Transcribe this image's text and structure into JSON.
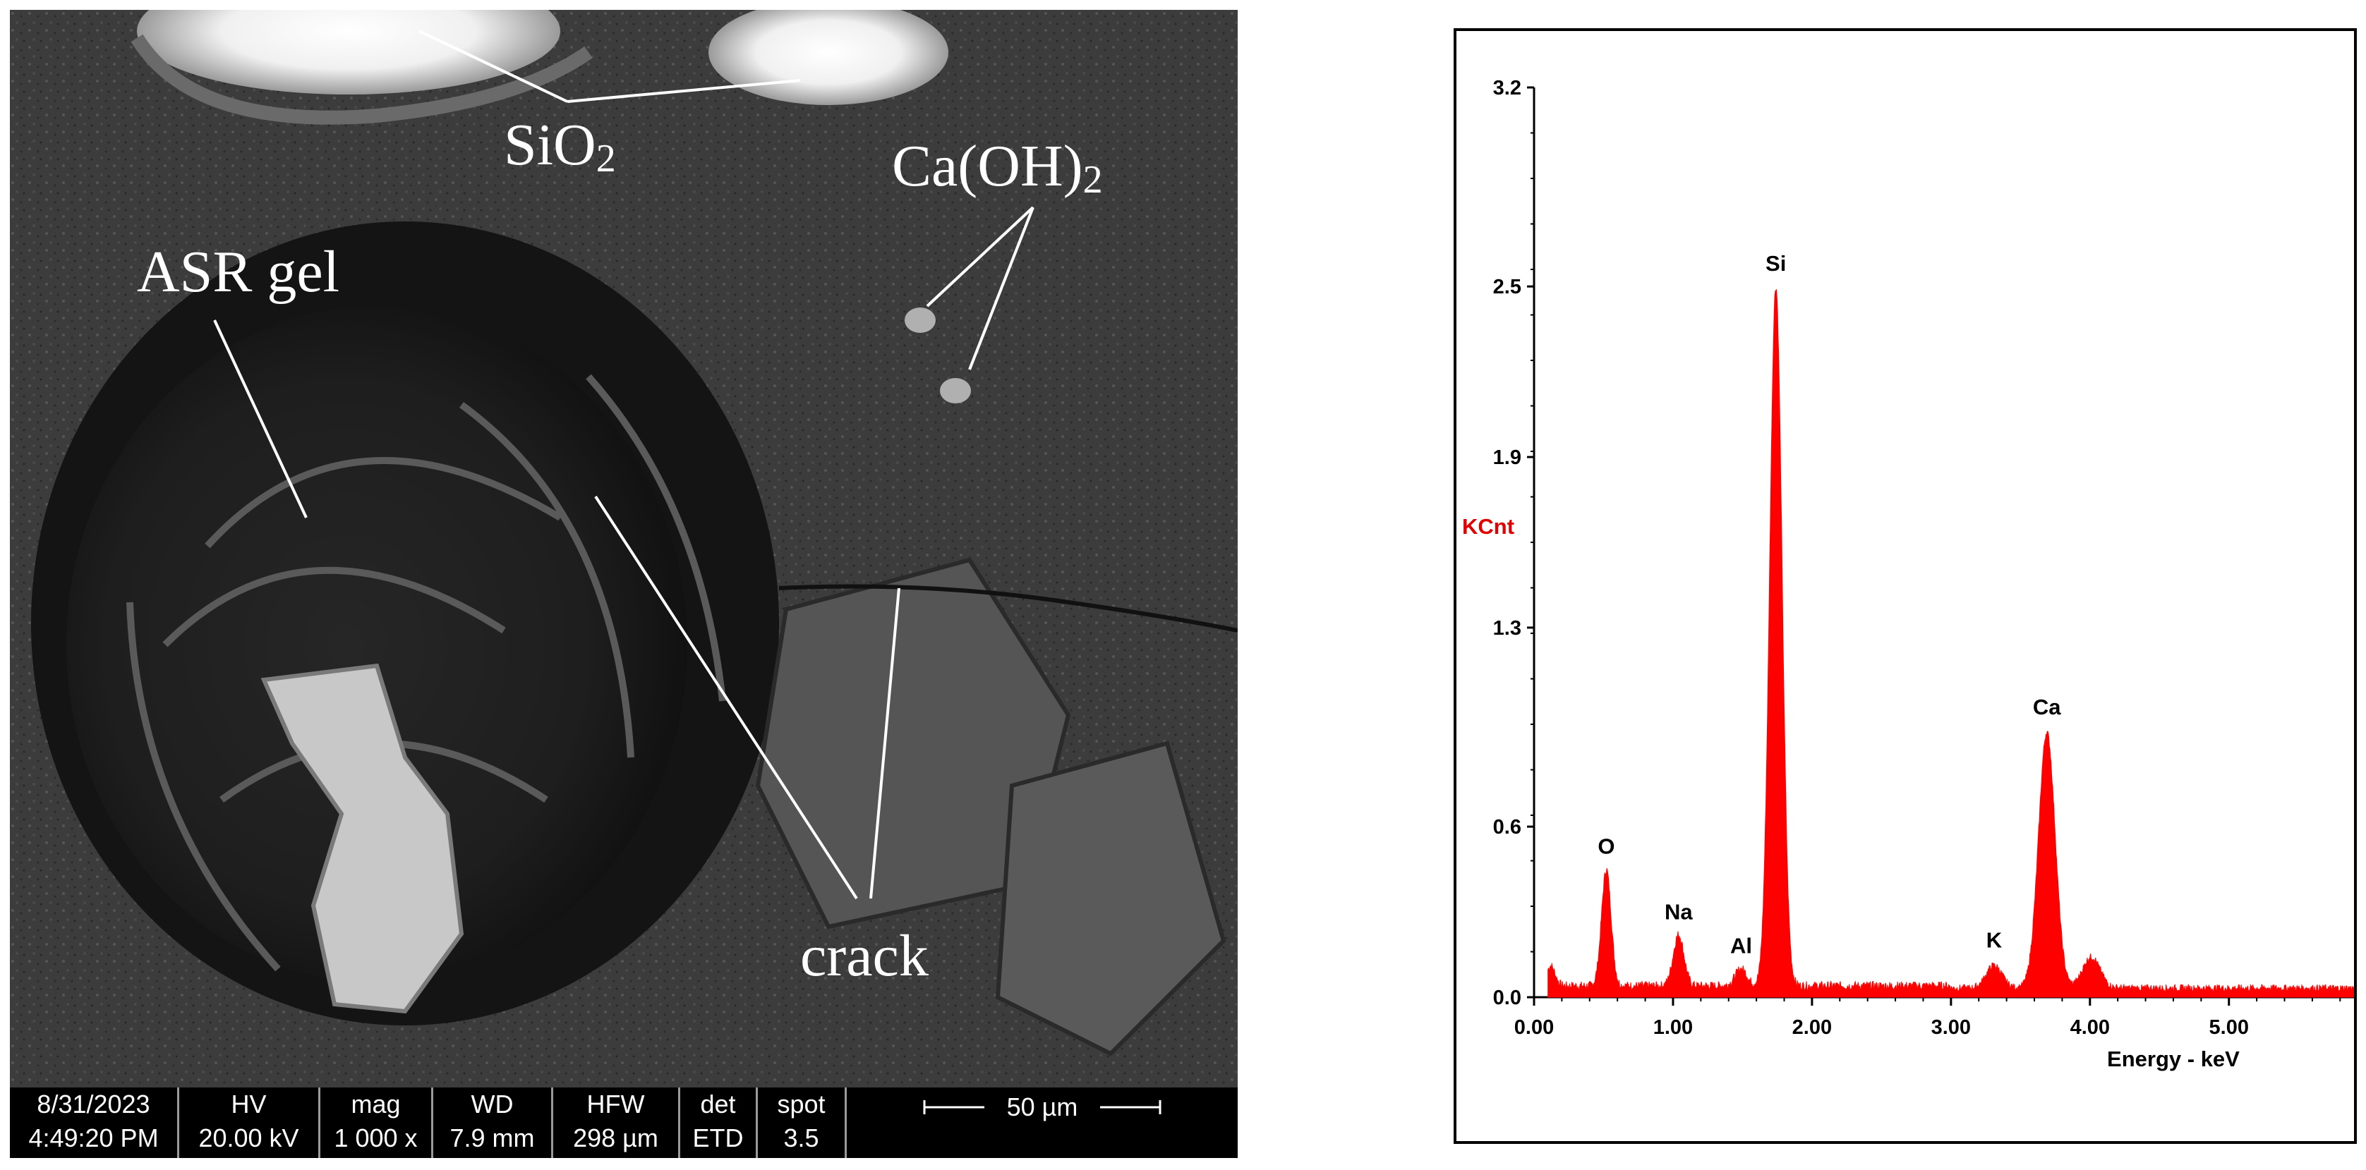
{
  "sem": {
    "labels": {
      "sio2_main": "SiO",
      "sio2_sub": "2",
      "caoh2_main": "Ca(OH)",
      "caoh2_sub": "2",
      "asr_gel": "ASR gel",
      "crack": "crack"
    },
    "info_bar": {
      "date": "8/31/2023",
      "time": "4:49:20 PM",
      "hv_header": "HV",
      "hv_value": "20.00 kV",
      "mag_header": "mag",
      "mag_value": "1 000 x",
      "wd_header": "WD",
      "wd_value": "7.9 mm",
      "hfw_header": "HFW",
      "hfw_value": "298 µm",
      "det_header": "det",
      "det_value": "ETD",
      "spot_header": "spot",
      "spot_value": "3.5",
      "scale_bar": "50 µm"
    }
  },
  "chart_data": {
    "type": "line",
    "title": "",
    "xlabel": "Energy - keV",
    "ylabel": "KCnt",
    "xlim": [
      0,
      5.9
    ],
    "ylim": [
      0,
      3.2
    ],
    "x_ticks": [
      "0.00",
      "1.00",
      "2.00",
      "3.00",
      "4.00",
      "5.00"
    ],
    "y_ticks": [
      "0.0",
      "0.6",
      "1.3",
      "1.9",
      "2.5",
      "3.2"
    ],
    "peaks": [
      {
        "element": "O",
        "energy": 0.52,
        "kcnt": 0.45
      },
      {
        "element": "Na",
        "energy": 1.04,
        "kcnt": 0.22
      },
      {
        "element": "Al",
        "energy": 1.49,
        "kcnt": 0.1
      },
      {
        "element": "Si",
        "energy": 1.74,
        "kcnt": 2.5
      },
      {
        "element": "K",
        "energy": 3.31,
        "kcnt": 0.12
      },
      {
        "element": "Ca",
        "energy": 3.69,
        "kcnt": 0.94
      }
    ],
    "minor_peaks": [
      {
        "energy": 0.12,
        "kcnt": 0.11
      },
      {
        "energy": 4.01,
        "kcnt": 0.15
      }
    ],
    "baseline": 0.04,
    "series_color": "#ff0000"
  }
}
